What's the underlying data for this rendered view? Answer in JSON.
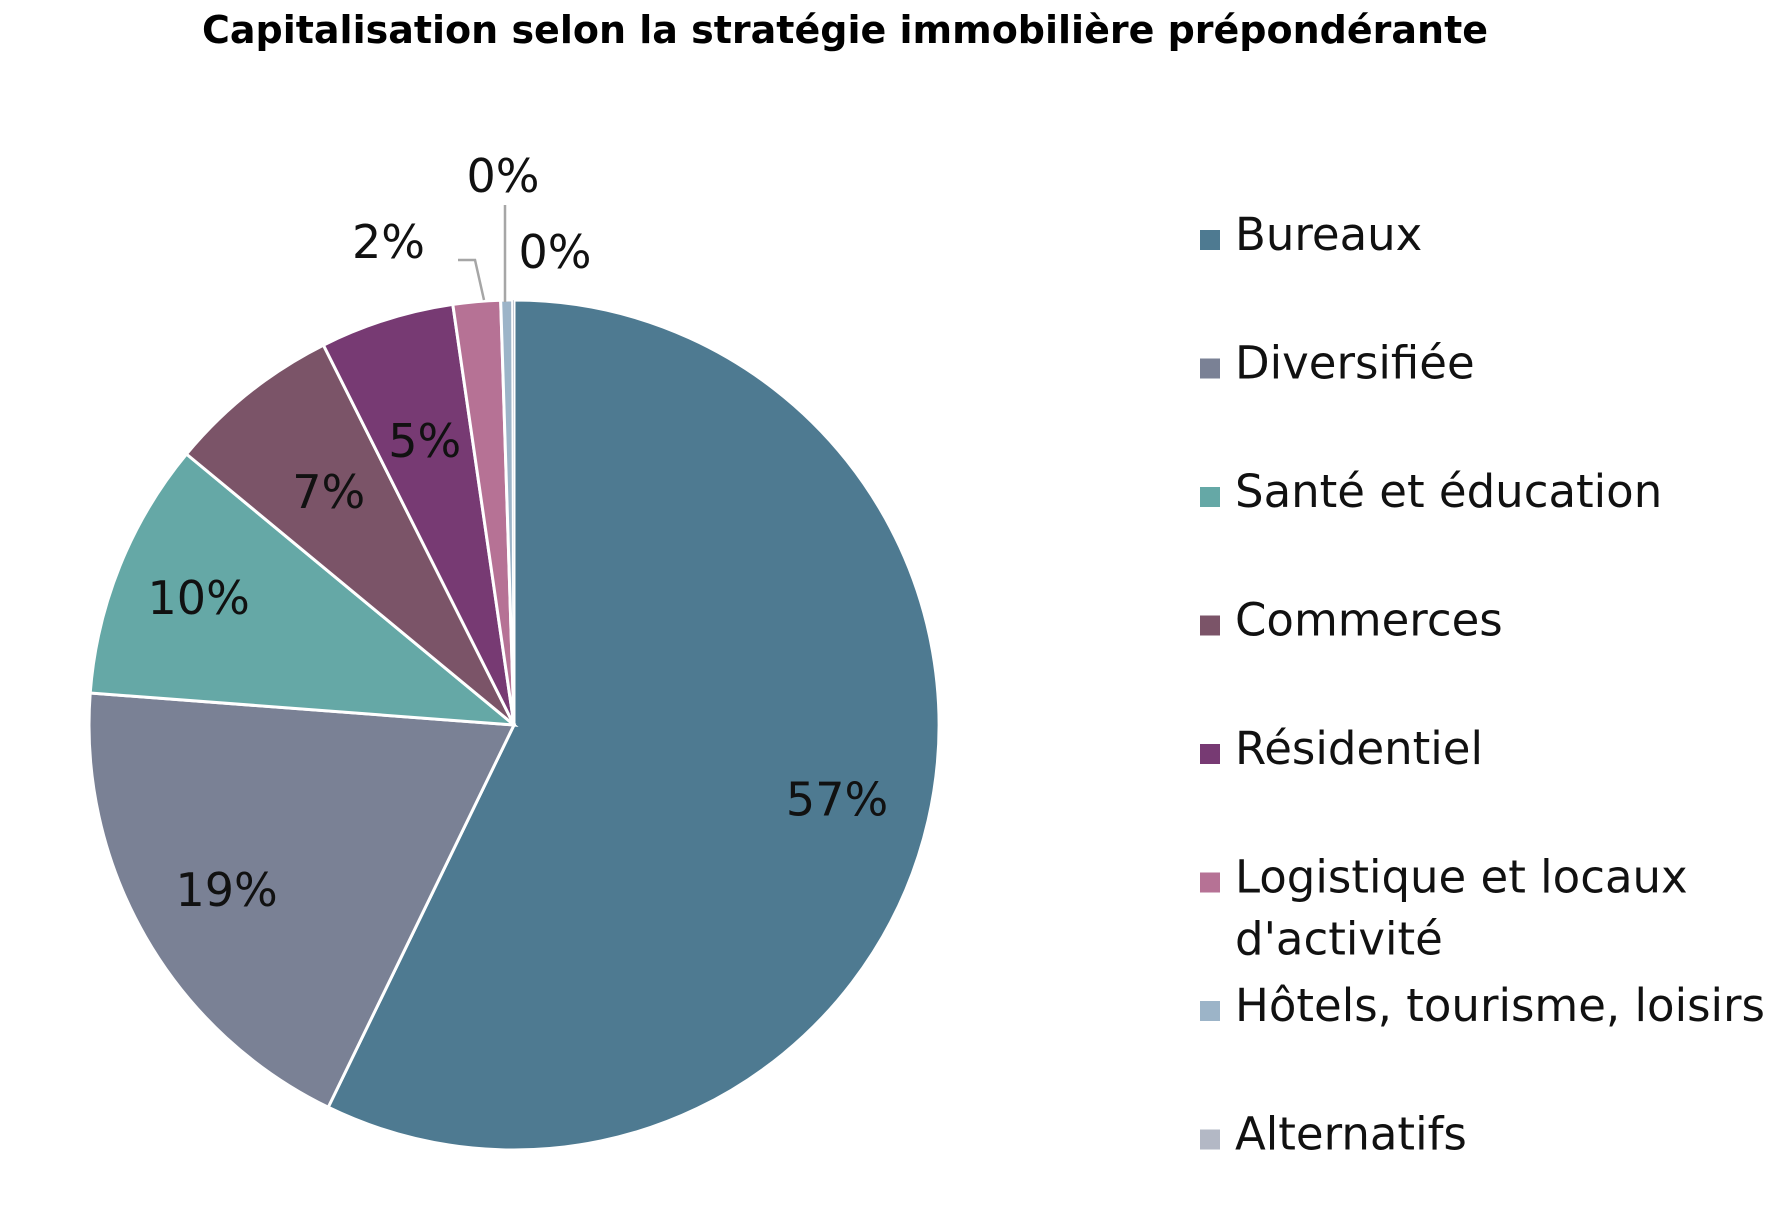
{
  "chart_data": {
    "type": "pie",
    "title": "Capitalisation selon la stratégie immobilière prépondérante",
    "start_angle_deg": 0,
    "direction": "clockwise",
    "slices": [
      {
        "label": "Bureaux",
        "value": 57.2,
        "display": "57%",
        "color": "#4e7a91"
      },
      {
        "label": "Diversifiée",
        "value": 19.0,
        "display": "19%",
        "color": "#7a8195"
      },
      {
        "label": "Santé et éducation",
        "value": 9.8,
        "display": "10%",
        "color": "#65a8a6"
      },
      {
        "label": "Commerces",
        "value": 6.6,
        "display": "7%",
        "color": "#7b5468"
      },
      {
        "label": "Résidentiel",
        "value": 5.1,
        "display": "5%",
        "color": "#773a73"
      },
      {
        "label": "Logistique et locaux d'activité",
        "value": 1.8,
        "display": "2%",
        "color": "#b67295"
      },
      {
        "label": "Hôtels, tourisme, loisirs",
        "value": 0.45,
        "display": "0%",
        "color": "#9cb4c8"
      },
      {
        "label": "Alternatifs",
        "value": 0.05,
        "display": "0%",
        "color": "#b3b8c5"
      }
    ],
    "legend": {
      "position": "right"
    }
  }
}
